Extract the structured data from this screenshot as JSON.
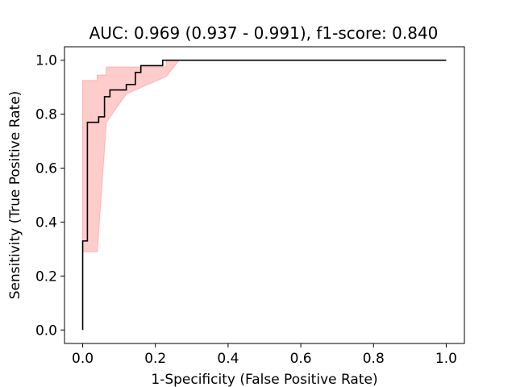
{
  "chart_data": {
    "type": "line",
    "title": "AUC: 0.969 (0.937 - 0.991), f1-score: 0.840",
    "xlabel": "1-Specificity (False Positive Rate)",
    "ylabel": "Sensitivity (True Positive Rate)",
    "xlim": [
      -0.05,
      1.05
    ],
    "ylim": [
      -0.05,
      1.05
    ],
    "x_ticks": [
      "0.0",
      "0.2",
      "0.4",
      "0.6",
      "0.8",
      "1.0"
    ],
    "y_ticks": [
      "0.0",
      "0.2",
      "0.4",
      "0.6",
      "0.8",
      "1.0"
    ],
    "grid": false,
    "series": [
      {
        "kind": "step-line",
        "color": "#000000",
        "points": [
          [
            0.0,
            0.0
          ],
          [
            0.0,
            0.33
          ],
          [
            0.013,
            0.33
          ],
          [
            0.013,
            0.77
          ],
          [
            0.044,
            0.77
          ],
          [
            0.044,
            0.79
          ],
          [
            0.06,
            0.79
          ],
          [
            0.06,
            0.865
          ],
          [
            0.075,
            0.865
          ],
          [
            0.075,
            0.89
          ],
          [
            0.12,
            0.89
          ],
          [
            0.12,
            0.91
          ],
          [
            0.145,
            0.91
          ],
          [
            0.145,
            0.955
          ],
          [
            0.16,
            0.955
          ],
          [
            0.16,
            0.98
          ],
          [
            0.22,
            0.98
          ],
          [
            0.22,
            1.0
          ],
          [
            1.0,
            1.0
          ]
        ]
      },
      {
        "kind": "confidence-band",
        "color": "#ffcccc",
        "edge_color": "#ffb3b3",
        "upper": [
          [
            0.0,
            0.925
          ],
          [
            0.04,
            0.925
          ],
          [
            0.04,
            0.945
          ],
          [
            0.065,
            0.945
          ],
          [
            0.065,
            0.975
          ],
          [
            0.23,
            0.975
          ],
          [
            0.23,
            1.0
          ],
          [
            1.0,
            1.0
          ]
        ],
        "lower": [
          [
            0.0,
            0.29
          ],
          [
            0.04,
            0.29
          ],
          [
            0.065,
            0.77
          ],
          [
            0.12,
            0.875
          ],
          [
            0.23,
            0.94
          ],
          [
            0.265,
            1.0
          ],
          [
            1.0,
            1.0
          ]
        ]
      }
    ]
  }
}
